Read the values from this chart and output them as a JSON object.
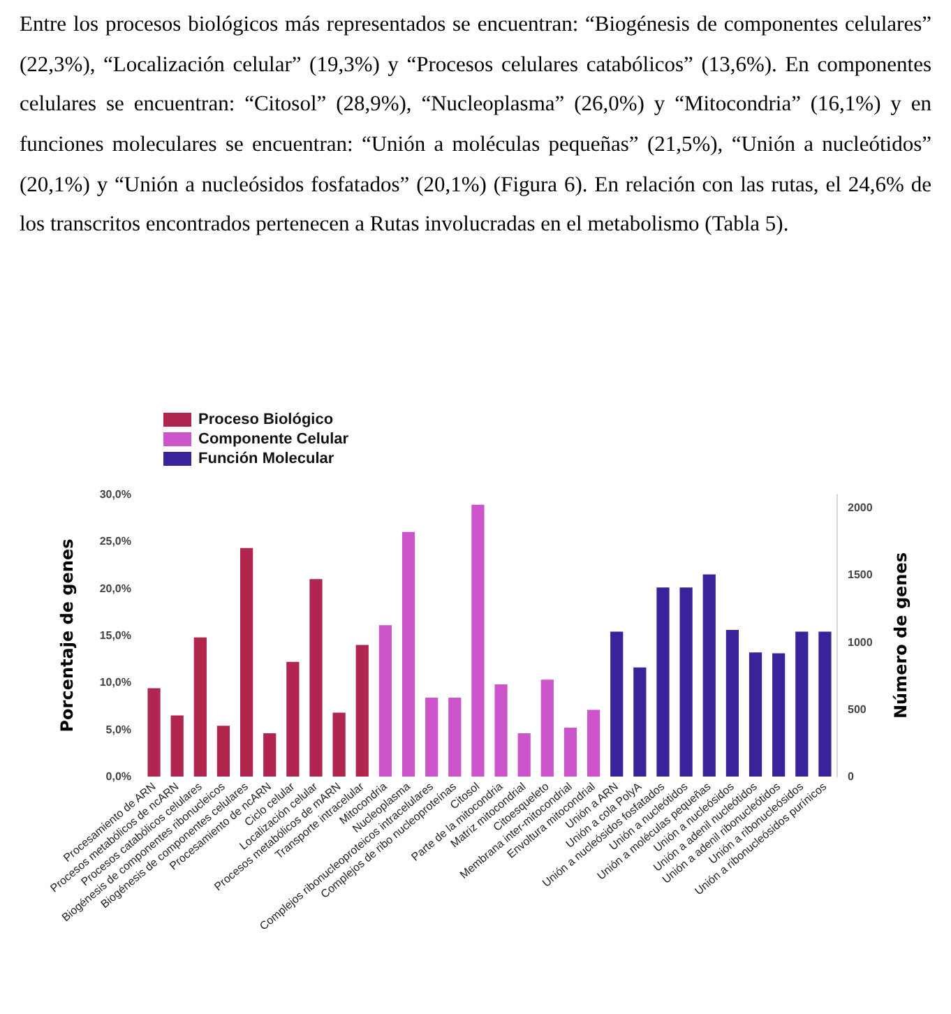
{
  "chart_data": {
    "type": "bar",
    "annotations": [
      "Entre los procesos biológicos más representados se encuentran: “Biogénesis de componentes celulares” (22,3%), “Localización celular” (19,3%) y “Procesos celulares catabólicos” (13,6%). En componentes celulares se encuentran: “Citosol” (28,9%), “Nucleoplasma” (26,0%) y “Mitocondria” (16,1%) y en funciones moleculares se encuentran: “Unión a moléculas pequeñas” (21,5%), “Unión a nucleótidos” (20,1%) y “Unión a nucleósidos fosfatados” (20,1%) (Figura 6). En relación con las rutas, el 24,6% de los transcritos encontrados pertenecen a Rutas involucradas en el metabolismo (Tabla 5)."
    ],
    "ylabel": "Porcentaje de genes",
    "y2label": "Número de genes",
    "categories": [
      "Procesamiento de ARN",
      "Procesos metabólicos de ncARN",
      "Procesos catabólicos celulares",
      "Biogénesis de componentes ribonucleicos",
      "Biogénesis de componentes celulares",
      "Procesamiento de ncARN",
      "Ciclo celular",
      "Localización celular",
      "Procesos metabólicos de mARN",
      "Transporte intracelular",
      "Mitocondria",
      "Nucleoplasma",
      "Complejos ribonucleoproteicos intracelulares",
      "Complejos de ribo nucleoproteínas",
      "Citosol",
      "Parte de la mitocondria",
      "Matriz mitocondrial",
      "Citoesqueleto",
      "Membrana inter-mitocondrial",
      "Envoltura mitocondrial",
      "Unión a ARN",
      "Unión a cola PolyA",
      "Unión a nucleósidos fosfatados",
      "Unión a nucleótidos",
      "Unión a moléculas pequeñas",
      "Unión a nucleósidos",
      "Unión a adenil nucleótidos",
      "Unión a adenil ribonucleótidos",
      "Unión a ribonucleósidos",
      "Unión a ribonucleósidos purínicos"
    ],
    "series": [
      {
        "name": "Proceso Biológico",
        "color": "#b0264f",
        "values": [
          9.4,
          6.5,
          14.8,
          5.4,
          24.3,
          4.6,
          12.2,
          21.0,
          6.8,
          14.0,
          null,
          null,
          null,
          null,
          null,
          null,
          null,
          null,
          null,
          null,
          null,
          null,
          null,
          null,
          null,
          null,
          null,
          null,
          null,
          null
        ]
      },
      {
        "name": "Componente Celular",
        "color": "#cc55cc",
        "values": [
          null,
          null,
          null,
          null,
          null,
          null,
          null,
          null,
          null,
          null,
          16.1,
          26.0,
          8.4,
          8.4,
          28.9,
          9.8,
          4.6,
          10.3,
          5.2,
          7.1,
          null,
          null,
          null,
          null,
          null,
          null,
          null,
          null,
          null,
          null
        ]
      },
      {
        "name": "Función Molecular",
        "color": "#3a229a",
        "values": [
          null,
          null,
          null,
          null,
          null,
          null,
          null,
          null,
          null,
          null,
          null,
          null,
          null,
          null,
          null,
          null,
          null,
          null,
          null,
          null,
          15.4,
          11.6,
          20.1,
          20.1,
          21.5,
          15.6,
          13.2,
          13.1,
          15.4,
          15.4
        ]
      }
    ],
    "ylim": [
      0,
      30
    ],
    "yticks": [
      {
        "value": 0,
        "label": "0,0%"
      },
      {
        "value": 5,
        "label": "5,0%"
      },
      {
        "value": 10,
        "label": "10,0%"
      },
      {
        "value": 15,
        "label": "15,0%"
      },
      {
        "value": 20,
        "label": "20,0%"
      },
      {
        "value": 25,
        "label": "25,0%"
      },
      {
        "value": 30,
        "label": "30,0%"
      }
    ],
    "y2lim": [
      0,
      2100
    ],
    "y2ticks": [
      0,
      500,
      1000,
      1500,
      2000
    ],
    "legend": "top left",
    "grid": false
  }
}
